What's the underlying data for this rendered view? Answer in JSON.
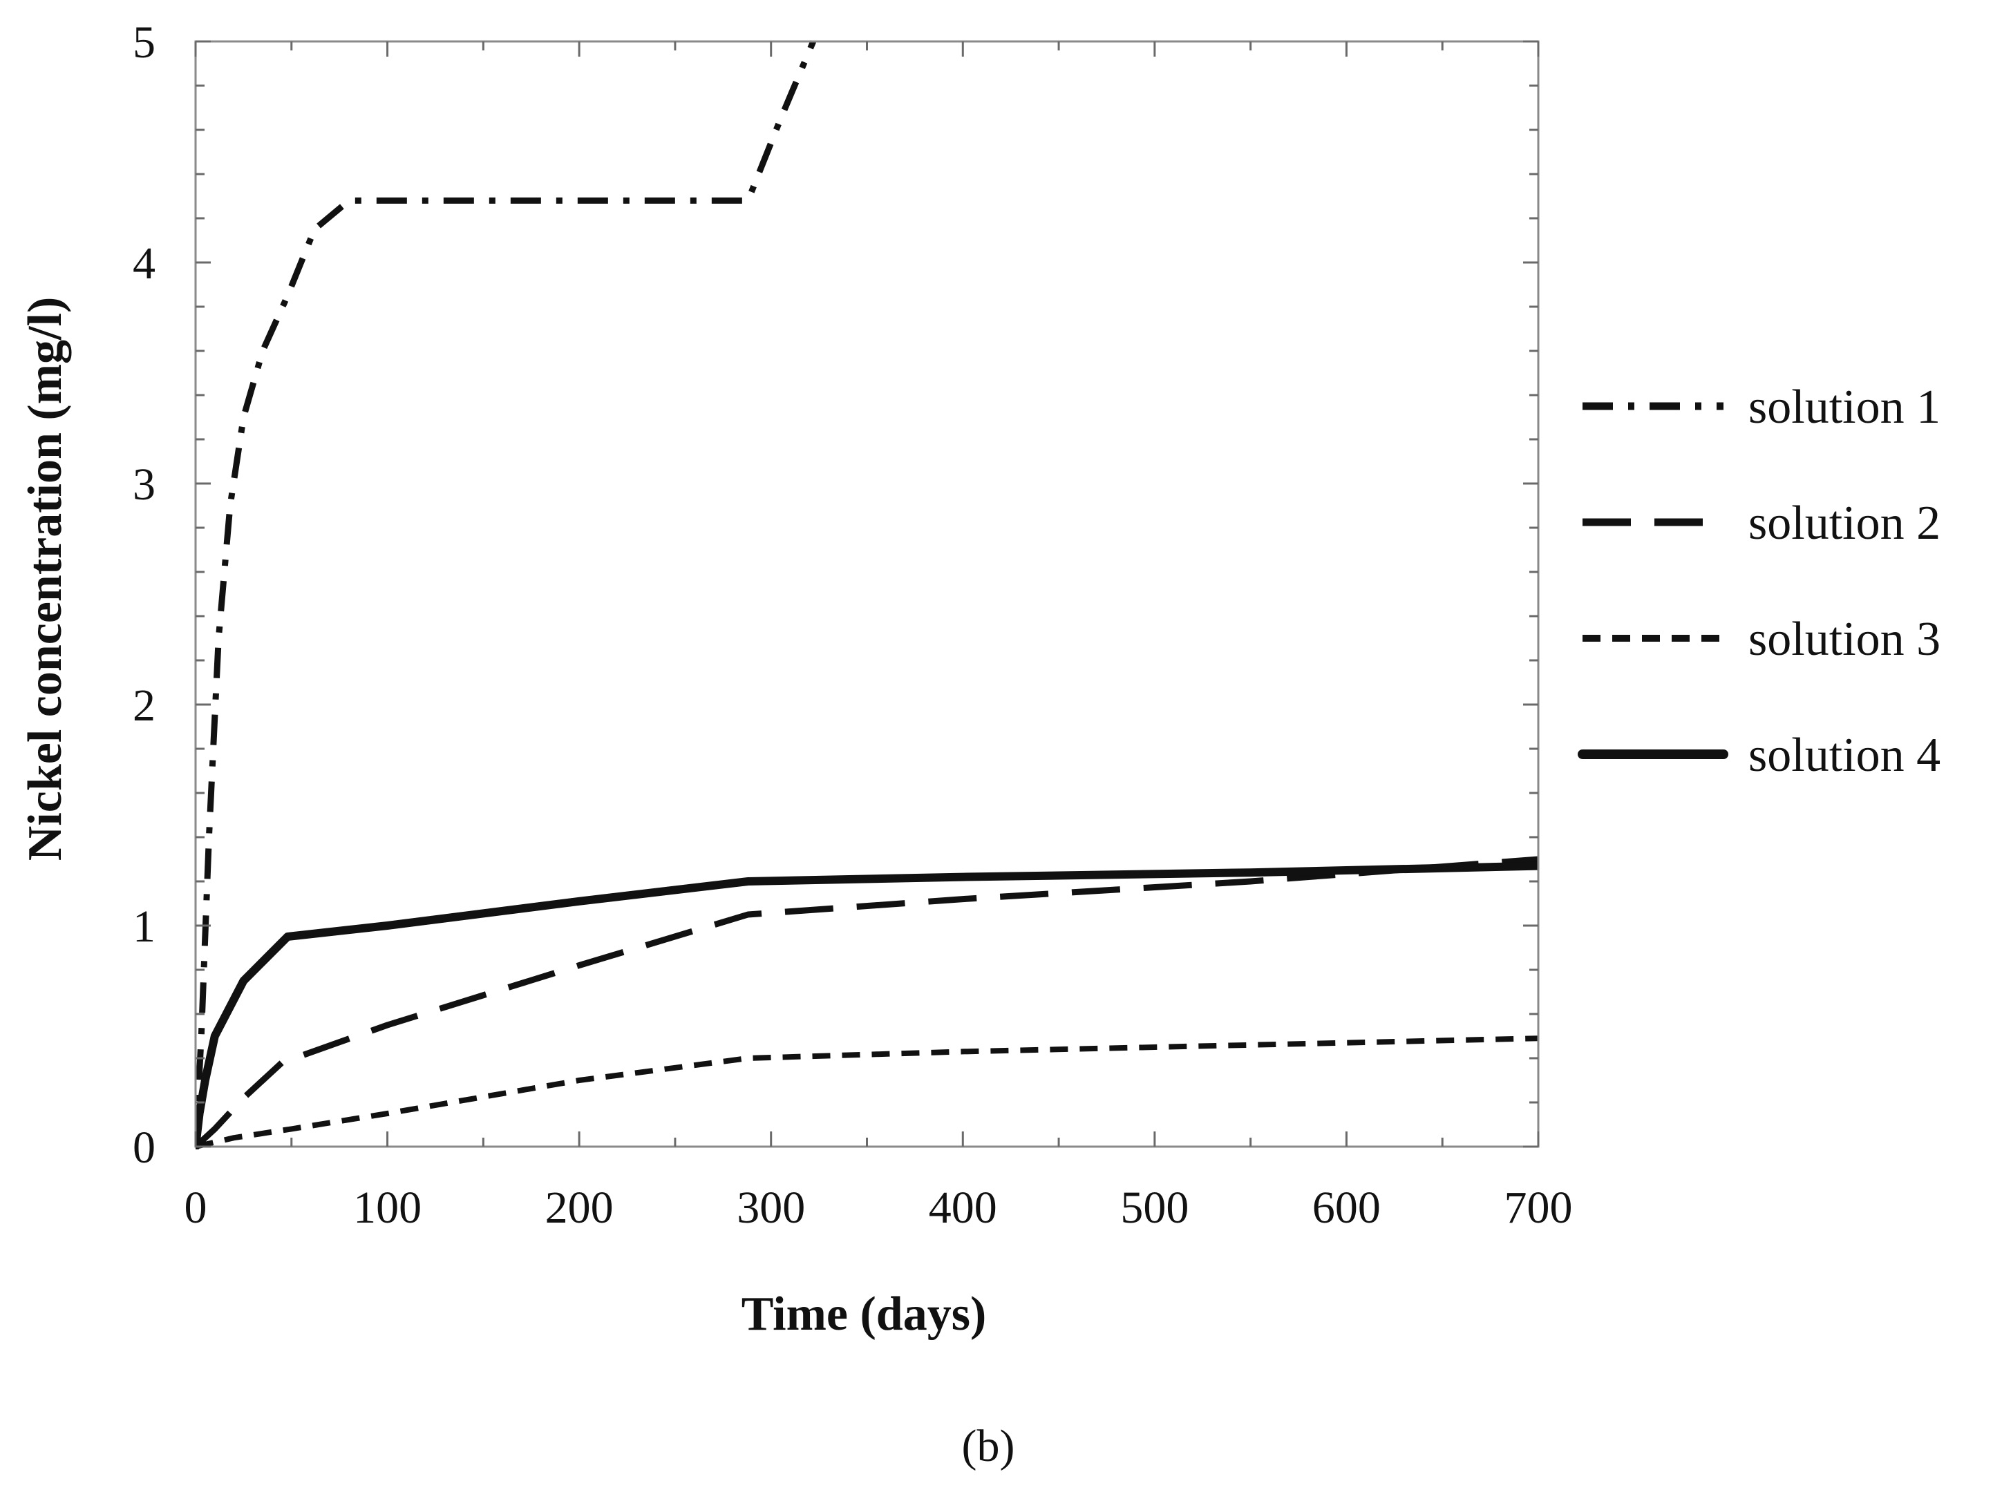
{
  "chart_data": {
    "type": "line",
    "title": "",
    "xlabel": "Time (days)",
    "ylabel": "Nickel concentration (mg/l)",
    "xlim": [
      0,
      700
    ],
    "ylim": [
      0,
      5
    ],
    "xticks": [
      0,
      100,
      200,
      300,
      400,
      500,
      600,
      700
    ],
    "yticks": [
      0,
      1,
      2,
      3,
      4,
      5
    ],
    "grid": false,
    "legend_position": "right",
    "series": [
      {
        "name": "solution 1",
        "style": "dashdot",
        "x": [
          0,
          3,
          7,
          12,
          18,
          25,
          35,
          48,
          62,
          80,
          100,
          150,
          200,
          250,
          288,
          305,
          322
        ],
        "y": [
          0,
          0.5,
          1.4,
          2.3,
          2.9,
          3.3,
          3.6,
          3.85,
          4.15,
          4.28,
          4.28,
          4.28,
          4.28,
          4.28,
          4.28,
          4.65,
          5.0
        ]
      },
      {
        "name": "solution 2",
        "style": "longdash",
        "x": [
          0,
          10,
          25,
          45,
          100,
          200,
          288,
          400,
          550,
          700
        ],
        "y": [
          0,
          0.08,
          0.22,
          0.38,
          0.55,
          0.82,
          1.05,
          1.12,
          1.2,
          1.3
        ]
      },
      {
        "name": "solution 3",
        "style": "shortdash",
        "x": [
          0,
          20,
          50,
          100,
          200,
          288,
          400,
          500,
          600,
          700
        ],
        "y": [
          0,
          0.04,
          0.08,
          0.15,
          0.3,
          0.4,
          0.43,
          0.45,
          0.47,
          0.49
        ]
      },
      {
        "name": "solution 4",
        "style": "solid",
        "x": [
          0,
          2,
          5,
          10,
          25,
          48,
          100,
          200,
          288,
          400,
          550,
          700
        ],
        "y": [
          0,
          0.15,
          0.3,
          0.5,
          0.75,
          0.95,
          1.0,
          1.11,
          1.2,
          1.22,
          1.24,
          1.27
        ]
      }
    ],
    "caption": "(b)"
  }
}
